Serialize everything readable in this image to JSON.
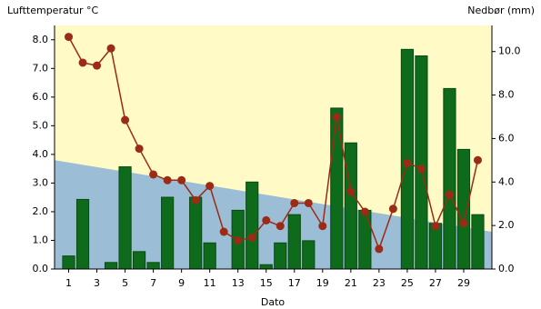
{
  "chart_data": {
    "type": "bar",
    "ylabel": "Lufttemperatur °C",
    "y2label": "Nedbør (mm)",
    "xlabel": "Dato",
    "xlim": [
      0,
      31
    ],
    "ylim": [
      0,
      8.5
    ],
    "y2lim": [
      0,
      11.2
    ],
    "xticks": [
      1,
      3,
      5,
      7,
      9,
      11,
      13,
      15,
      17,
      19,
      21,
      23,
      25,
      27,
      29
    ],
    "yticks": [
      {
        "value": 0,
        "label": "0.0"
      },
      {
        "value": 1,
        "label": "1.0"
      },
      {
        "value": 2,
        "label": "2.0"
      },
      {
        "value": 3,
        "label": "3.0"
      },
      {
        "value": 4,
        "label": "4.0"
      },
      {
        "value": 5,
        "label": "5.0"
      },
      {
        "value": 6,
        "label": "6.0"
      },
      {
        "value": 7,
        "label": "7.0"
      },
      {
        "value": 8,
        "label": "8.0"
      }
    ],
    "y2ticks": [
      {
        "value": 0,
        "label": "0.0"
      },
      {
        "value": 2,
        "label": "2.0"
      },
      {
        "value": 4,
        "label": "4.0"
      },
      {
        "value": 6,
        "label": "6.0"
      },
      {
        "value": 8,
        "label": "8.0"
      },
      {
        "value": 10,
        "label": "10.0"
      }
    ],
    "background": "#fffac6",
    "series": [
      {
        "type": "area",
        "color": "#9bbdd6",
        "x": [
          0,
          31
        ],
        "values": [
          3.8,
          1.3
        ]
      },
      {
        "type": "bar",
        "axis": "y2",
        "color": "#0d6b1b",
        "x": [
          1,
          2,
          3,
          4,
          5,
          6,
          7,
          8,
          9,
          10,
          11,
          12,
          13,
          14,
          15,
          16,
          17,
          18,
          19,
          20,
          21,
          22,
          23,
          24,
          25,
          26,
          27,
          28,
          29,
          30
        ],
        "values": [
          0.6,
          3.2,
          0,
          0.3,
          4.7,
          0.8,
          0.3,
          3.3,
          0,
          3.3,
          1.2,
          0,
          2.7,
          4.0,
          0.2,
          1.2,
          2.5,
          1.3,
          0,
          7.4,
          5.8,
          2.7,
          0,
          0,
          10.1,
          9.8,
          2.1,
          8.3,
          5.5,
          2.5
        ]
      },
      {
        "type": "line",
        "color": "#9b2a16",
        "x": [
          1,
          2,
          3,
          4,
          5,
          6,
          7,
          8,
          9,
          10,
          11,
          12,
          13,
          14,
          15,
          16,
          17,
          18,
          19,
          20,
          21,
          22,
          23,
          24,
          25,
          26,
          27,
          28,
          29,
          30
        ],
        "values": [
          8.1,
          7.2,
          7.1,
          7.7,
          5.2,
          4.2,
          3.3,
          3.1,
          3.1,
          2.4,
          2.9,
          1.3,
          1.0,
          1.1,
          1.7,
          1.5,
          2.3,
          2.3,
          1.5,
          5.3,
          2.7,
          2.0,
          0.7,
          2.1,
          3.7,
          3.5,
          1.5,
          2.6,
          1.6,
          3.8
        ]
      }
    ]
  }
}
